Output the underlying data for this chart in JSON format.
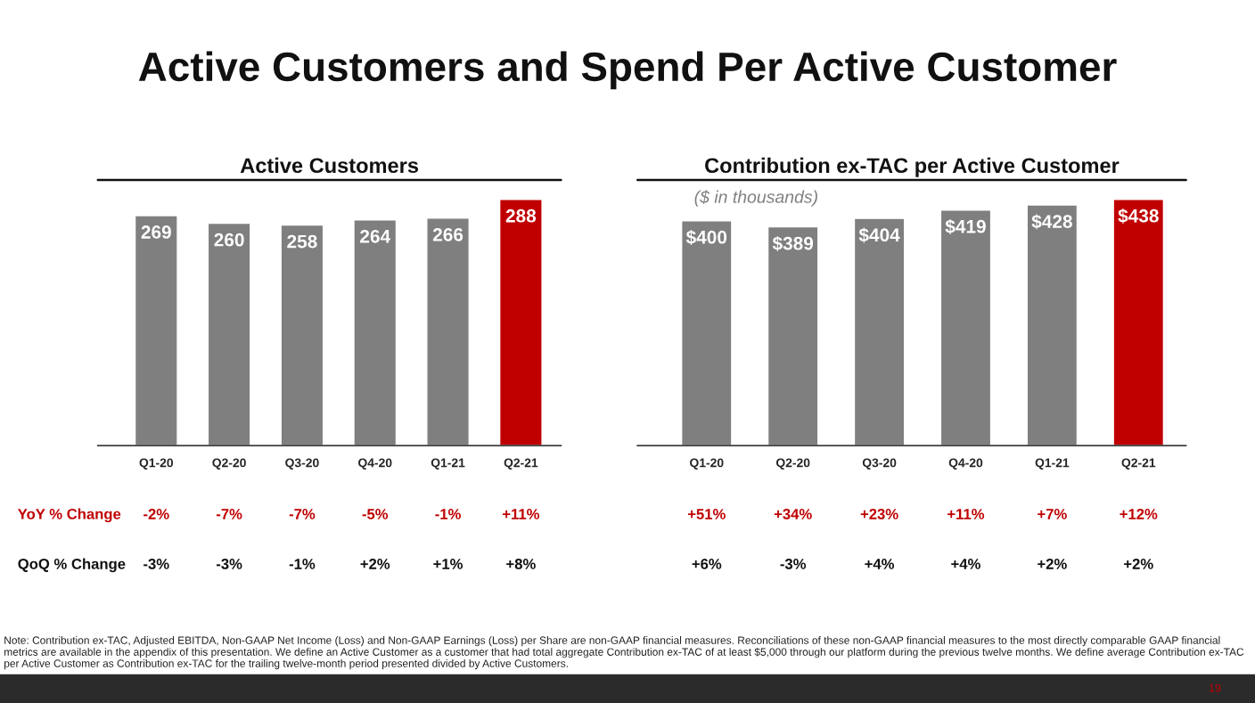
{
  "chart_data": [
    {
      "type": "bar",
      "title": "Active Customers",
      "categories": [
        "Q1-20",
        "Q2-20",
        "Q3-20",
        "Q4-20",
        "Q1-21",
        "Q2-21"
      ],
      "values": [
        269,
        260,
        258,
        264,
        266,
        288
      ],
      "colors": [
        "#7f7f7f",
        "#7f7f7f",
        "#7f7f7f",
        "#7f7f7f",
        "#7f7f7f",
        "#c00000"
      ],
      "data_labels": true,
      "tick_labels": "x",
      "grid": false,
      "annotations": [
        "Active Customers and Spend Per Active Customer",
        "Note: Contribution ex-TAC, Adjusted EBITDA, Non-GAAP Net Income (Loss) and Non-GAAP Earnings (Loss) per Share are non-GAAP financial measures. Reconciliations of these non-GAAP financial measures to the most directly comparable GAAP financial metrics are available in the appendix of this presentation. We define an Active Customer as a customer that had total aggregate Contribution ex-TAC of at least $5,000 through our platform during the previous twelve months. We define average Contribution ex-TAC per Active Customer as Contribution ex-TAC for the trailing twelve-month period presented divided by Active Customers.",
        "19",
        "YoY % Change",
        "-2%",
        "-7%",
        "-7%",
        "-5%",
        "-1%",
        "+11%",
        "QoQ % Change",
        "-3%",
        "-3%",
        "-1%",
        "+2%",
        "+1%",
        "+8%"
      ]
    },
    {
      "type": "bar",
      "title": "Contribution ex-TAC per Active Customer",
      "subtitle": "($ in thousands)",
      "categories": [
        "Q1-20",
        "Q2-20",
        "Q3-20",
        "Q4-20",
        "Q1-21",
        "Q2-21"
      ],
      "values": [
        400,
        389,
        404,
        419,
        428,
        438
      ],
      "colors": [
        "#7f7f7f",
        "#7f7f7f",
        "#7f7f7f",
        "#7f7f7f",
        "#7f7f7f",
        "#c00000"
      ],
      "value_labels": [
        "$400",
        "$389",
        "$404",
        "$419",
        "$428",
        "$438"
      ],
      "tick_labels": "x",
      "grid": false,
      "annotations": [
        "+51%",
        "+34%",
        "+23%",
        "+11%",
        "+7%",
        "+12%",
        "+6%",
        "-3%",
        "+4%",
        "+4%",
        "+2%",
        "+2%"
      ]
    }
  ]
}
